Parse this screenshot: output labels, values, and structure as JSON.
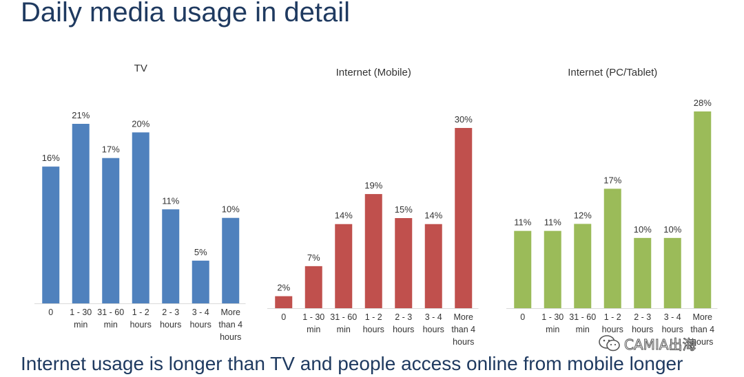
{
  "title": "Daily media usage in detail",
  "conclusion": "Internet usage is longer than TV and people access online from mobile longer",
  "watermark": "CAMIA出海",
  "chart_data": [
    {
      "type": "bar",
      "title": "TV",
      "color": "#4f81bd",
      "categories": [
        [
          "0"
        ],
        [
          "1 - 30",
          "min"
        ],
        [
          "31 - 60",
          "min"
        ],
        [
          "1 - 2",
          "hours"
        ],
        [
          "2 - 3",
          "hours"
        ],
        [
          "3 - 4",
          "hours"
        ],
        [
          "More",
          "than 4",
          "hours"
        ]
      ],
      "values": [
        16,
        21,
        17,
        20,
        11,
        5,
        10
      ],
      "value_labels": [
        "16%",
        "21%",
        "17%",
        "20%",
        "11%",
        "5%",
        "10%"
      ],
      "unit": "%",
      "ylim": [
        0,
        30
      ],
      "grid": false,
      "legend": "none"
    },
    {
      "type": "bar",
      "title": "Internet (Mobile)",
      "color": "#c0504d",
      "categories": [
        [
          "0"
        ],
        [
          "1 - 30",
          "min"
        ],
        [
          "31 - 60",
          "min"
        ],
        [
          "1 - 2",
          "hours"
        ],
        [
          "2 - 3",
          "hours"
        ],
        [
          "3 - 4",
          "hours"
        ],
        [
          "More",
          "than 4",
          "hours"
        ]
      ],
      "values": [
        2,
        7,
        14,
        19,
        15,
        14,
        30
      ],
      "value_labels": [
        "2%",
        "7%",
        "14%",
        "19%",
        "15%",
        "14%",
        "30%"
      ],
      "unit": "%",
      "ylim": [
        0,
        30
      ],
      "grid": false,
      "legend": "none"
    },
    {
      "type": "bar",
      "title": "Internet (PC/Tablet)",
      "color": "#9bbb59",
      "categories": [
        [
          "0"
        ],
        [
          "1 - 30",
          "min"
        ],
        [
          "31 - 60",
          "min"
        ],
        [
          "1 - 2",
          "hours"
        ],
        [
          "2 - 3",
          "hours"
        ],
        [
          "3 - 4",
          "hours"
        ],
        [
          "More",
          "than 4",
          "hours"
        ]
      ],
      "values": [
        11,
        11,
        12,
        17,
        10,
        10,
        28
      ],
      "value_labels": [
        "11%",
        "11%",
        "12%",
        "17%",
        "10%",
        "10%",
        "28%"
      ],
      "unit": "%",
      "ylim": [
        0,
        30
      ],
      "grid": false,
      "legend": "none"
    }
  ]
}
